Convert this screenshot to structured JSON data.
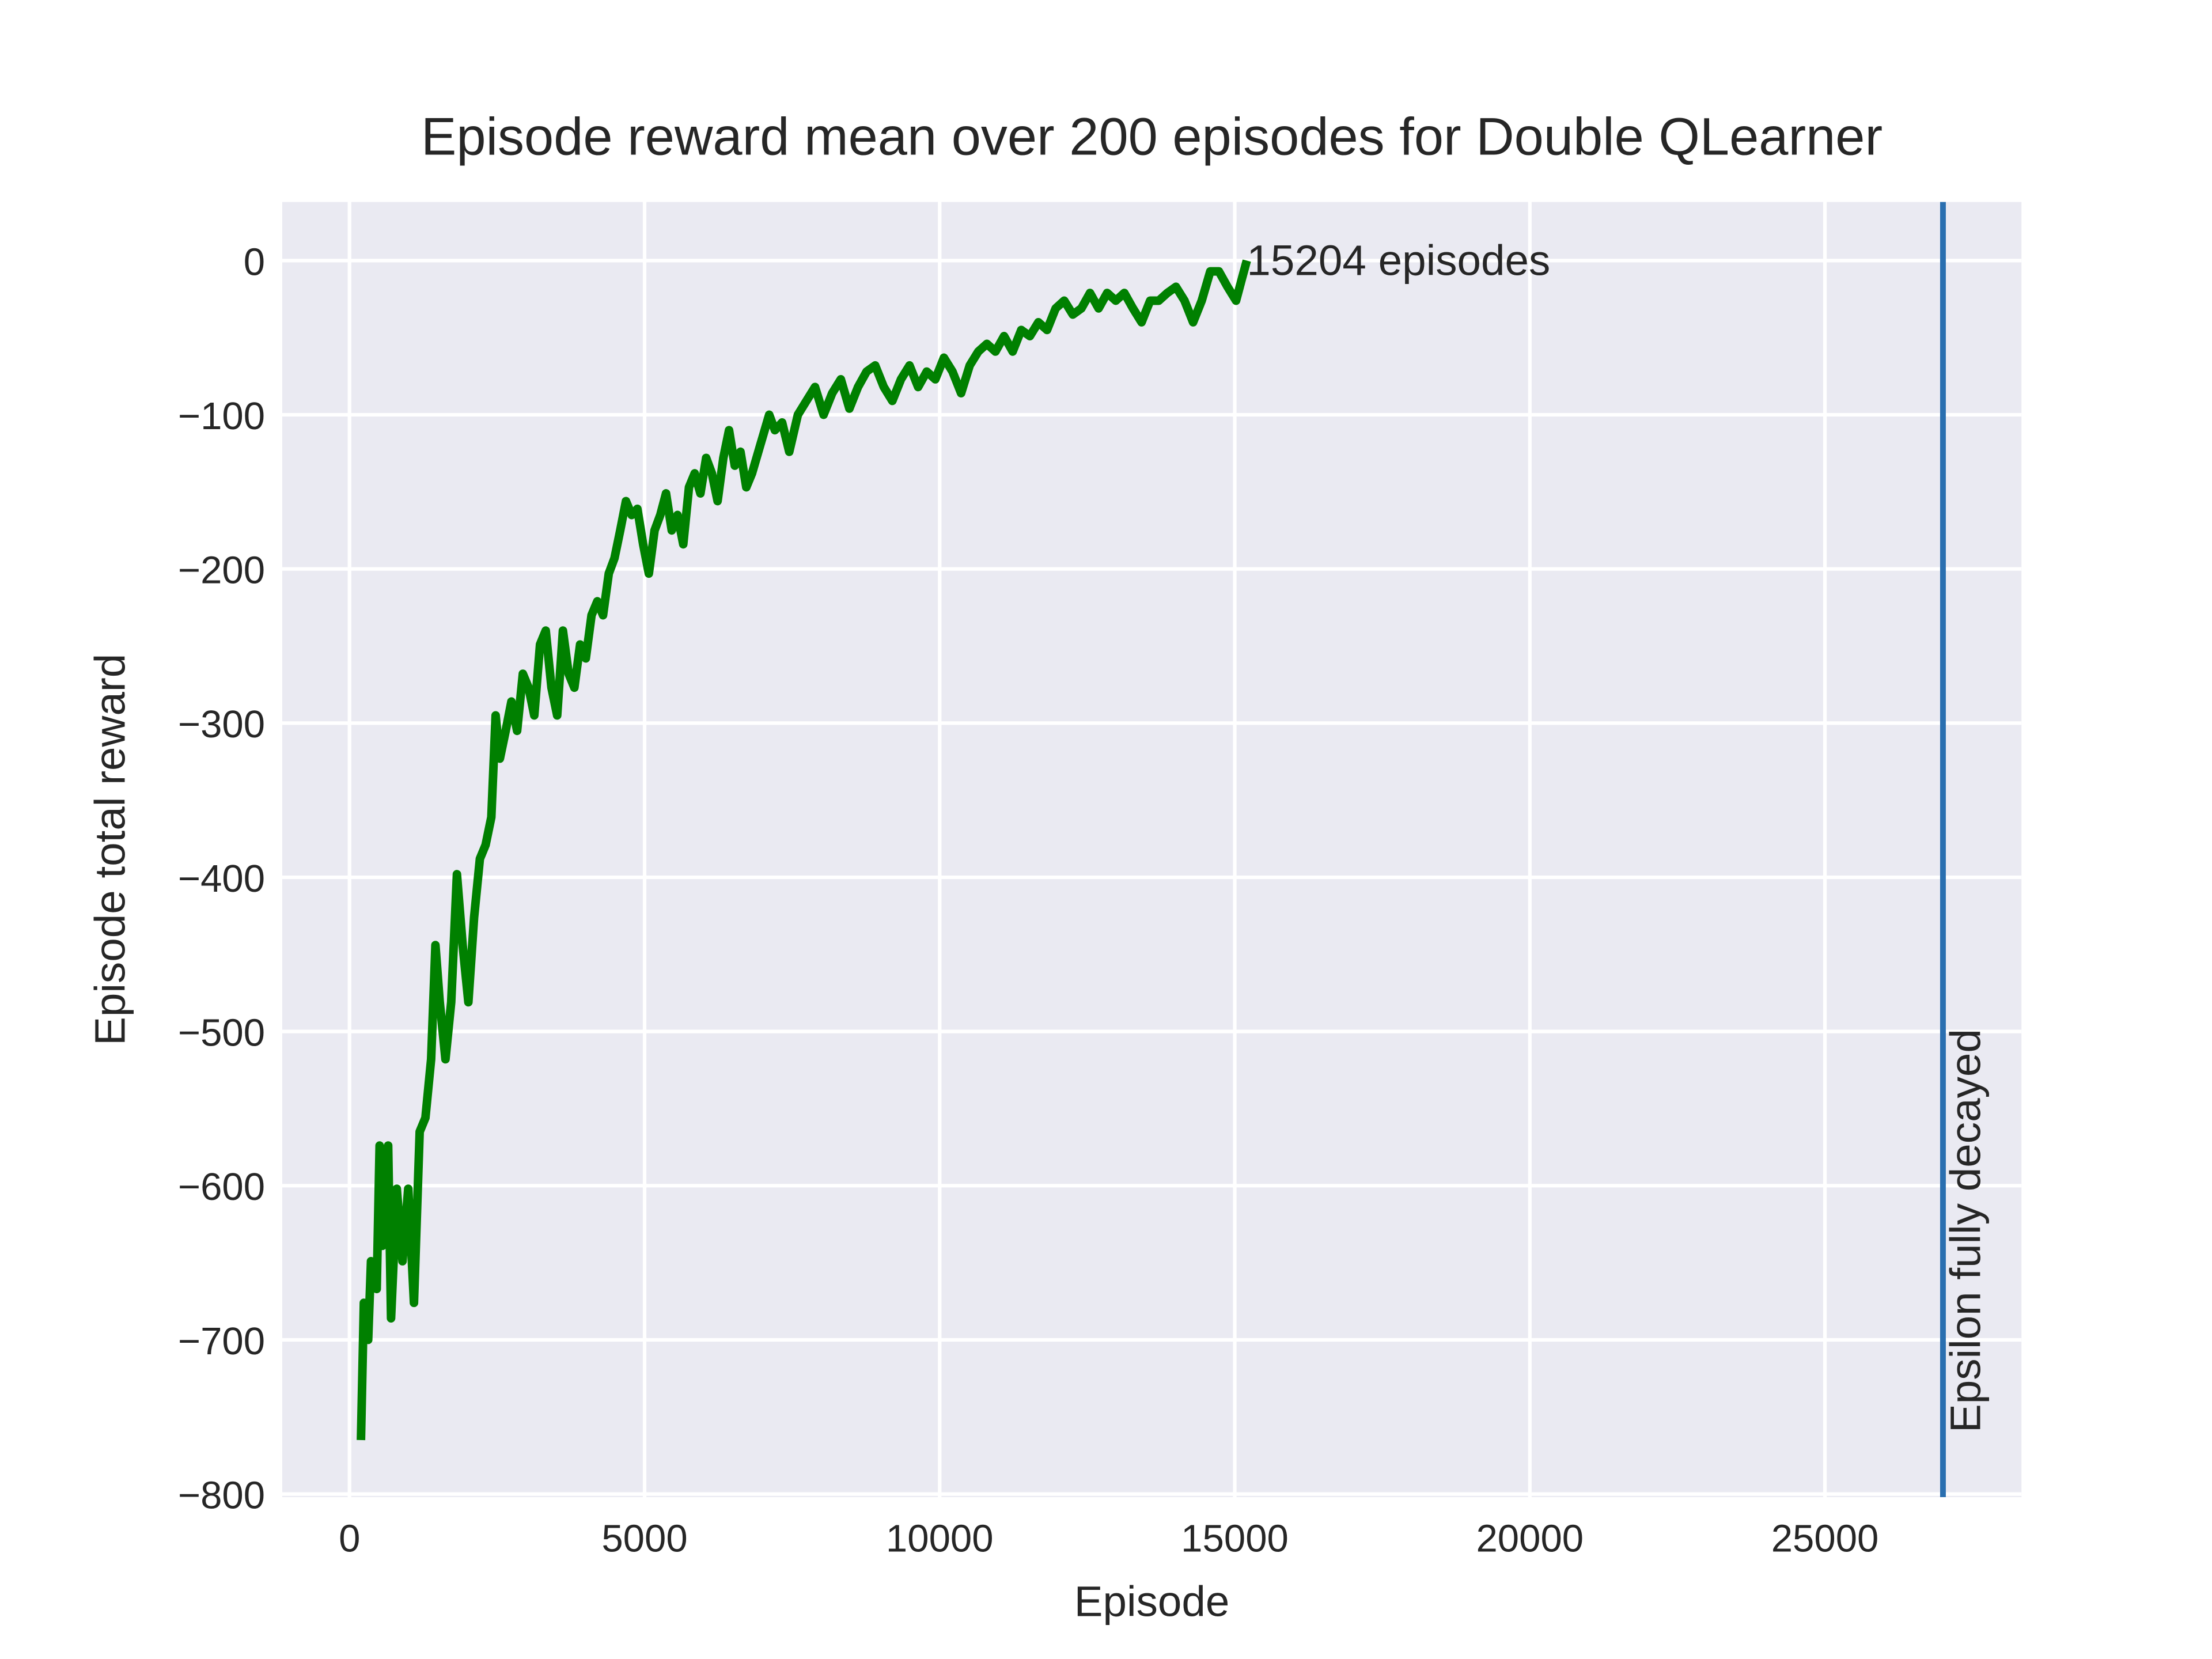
{
  "chart_data": {
    "type": "line",
    "title": "Episode reward mean over 200 episodes for Double QLearner",
    "x_label": "Episode",
    "y_label": "Episode total reward",
    "x": [
      194,
      243,
      316,
      364,
      461,
      510,
      558,
      655,
      704,
      801,
      898,
      995,
      1092,
      1189,
      1286,
      1383,
      1456,
      1529,
      1626,
      1723,
      1820,
      1917,
      2014,
      2111,
      2209,
      2306,
      2403,
      2476,
      2548,
      2646,
      2743,
      2840,
      2937,
      3034,
      3131,
      3228,
      3325,
      3422,
      3519,
      3616,
      3713,
      3810,
      3907,
      4004,
      4101,
      4199,
      4296,
      4393,
      4490,
      4587,
      4684,
      4781,
      4878,
      4975,
      5072,
      5169,
      5266,
      5363,
      5460,
      5558,
      5655,
      5752,
      5849,
      5946,
      6043,
      6140,
      6237,
      6334,
      6431,
      6528,
      6625,
      6723,
      6820,
      6965,
      7111,
      7208,
      7330,
      7451,
      7597,
      7742,
      7888,
      8033,
      8179,
      8325,
      8470,
      8616,
      8761,
      8907,
      9053,
      9198,
      9344,
      9489,
      9635,
      9781,
      9926,
      10072,
      10217,
      10363,
      10509,
      10654,
      10800,
      10945,
      11091,
      11237,
      11382,
      11528,
      11673,
      11819,
      11965,
      12110,
      12256,
      12401,
      12547,
      12693,
      12838,
      12984,
      13129,
      13275,
      13421,
      13566,
      13712,
      13857,
      14003,
      14149,
      14294,
      14440,
      14585,
      14731,
      14877,
      15022,
      15119,
      15204
    ],
    "values": [
      -765,
      -676,
      -700,
      -649,
      -667,
      -574,
      -639,
      -574,
      -686,
      -602,
      -649,
      -602,
      -676,
      -565,
      -556,
      -518,
      -444,
      -481,
      -518,
      -481,
      -398,
      -444,
      -481,
      -426,
      -388,
      -379,
      -361,
      -295,
      -323,
      -305,
      -286,
      -305,
      -268,
      -277,
      -295,
      -249,
      -240,
      -277,
      -295,
      -240,
      -268,
      -277,
      -249,
      -258,
      -230,
      -221,
      -230,
      -203,
      -193,
      -175,
      -156,
      -165,
      -161,
      -184,
      -203,
      -175,
      -165,
      -151,
      -175,
      -165,
      -184,
      -147,
      -138,
      -151,
      -128,
      -138,
      -156,
      -128,
      -110,
      -133,
      -124,
      -147,
      -138,
      -119,
      -100,
      -110,
      -105,
      -124,
      -100,
      -91,
      -82,
      -100,
      -86,
      -77,
      -96,
      -82,
      -72,
      -68,
      -82,
      -91,
      -77,
      -68,
      -82,
      -72,
      -77,
      -63,
      -72,
      -86,
      -68,
      -59,
      -54,
      -59,
      -49,
      -59,
      -45,
      -49,
      -40,
      -45,
      -31,
      -26,
      -35,
      -31,
      -21,
      -31,
      -21,
      -26,
      -21,
      -31,
      -40,
      -26,
      -26,
      -21,
      -17,
      -26,
      -40,
      -26,
      -7,
      -7,
      -17,
      -26,
      -12,
      0
    ],
    "color": "#008000",
    "xlim": [
      -1140,
      28330
    ],
    "ylim": [
      -802,
      38
    ],
    "xticks": [
      0,
      5000,
      10000,
      15000,
      20000,
      25000
    ],
    "yticks": [
      {
        "value": -800,
        "label": "−800"
      },
      {
        "value": -700,
        "label": "−700"
      },
      {
        "value": -600,
        "label": "−600"
      },
      {
        "value": -500,
        "label": "−500"
      },
      {
        "value": -400,
        "label": "−400"
      },
      {
        "value": -300,
        "label": "−300"
      },
      {
        "value": -200,
        "label": "−200"
      },
      {
        "value": -100,
        "label": "−100"
      },
      0
    ],
    "grid": true,
    "annotation": {
      "text": "15204 episodes",
      "x": 15204,
      "y": 0
    },
    "vline": {
      "x": 27000,
      "label": "Epsilon fully decayed",
      "color": "#2a6fb0"
    }
  }
}
